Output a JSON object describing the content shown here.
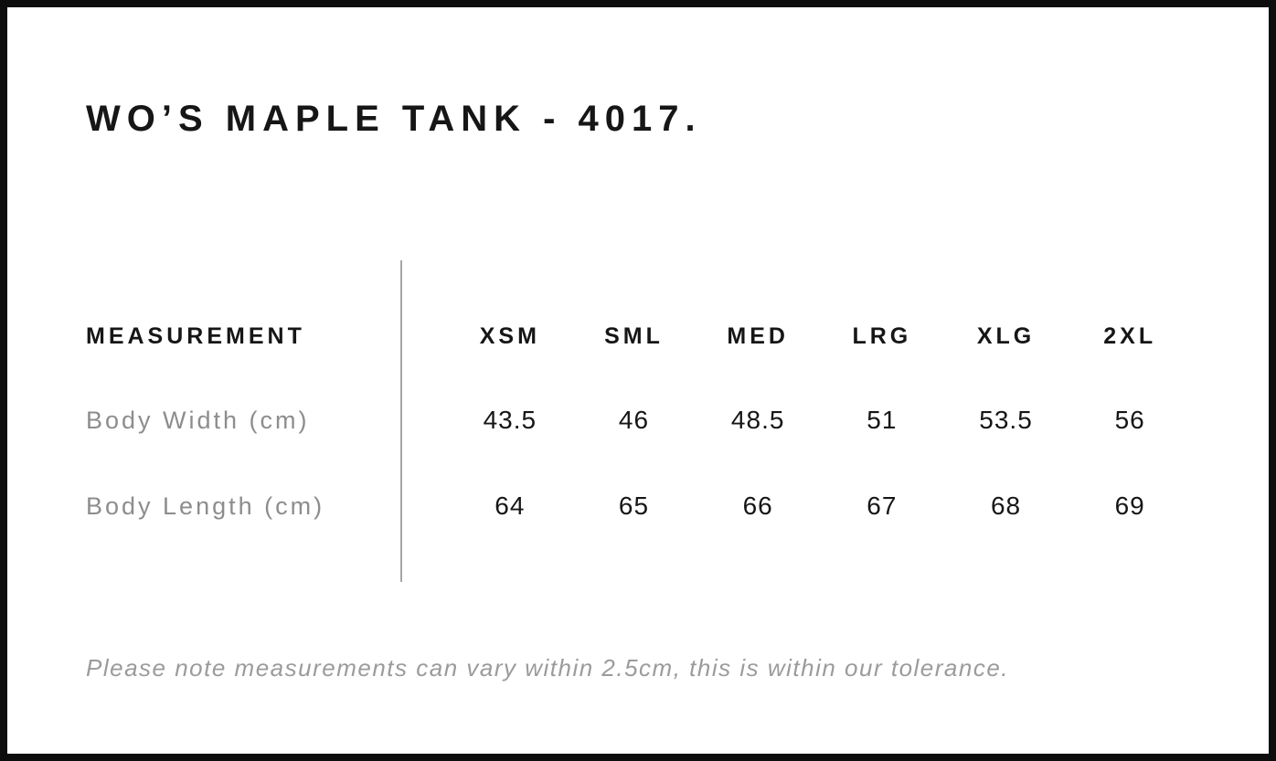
{
  "header": {
    "title": "WO’S MAPLE TANK - 4017."
  },
  "size_chart": {
    "type": "table",
    "columns": [
      "MEASUREMENT",
      "XSM",
      "SML",
      "MED",
      "LRG",
      "XLG",
      "2XL"
    ],
    "rows": [
      {
        "label": "Body Width (cm)",
        "values": [
          "43.5",
          "46",
          "48.5",
          "51",
          "53.5",
          "56"
        ]
      },
      {
        "label": "Body Length (cm)",
        "values": [
          "64",
          "65",
          "66",
          "67",
          "68",
          "69"
        ]
      }
    ]
  },
  "footer": {
    "note": "Please note measurements can vary within 2.5cm, this is within our tolerance."
  },
  "colors": {
    "text": "#161616",
    "muted": "#8d8d8d",
    "note": "#9b9b9b",
    "divider": "#a6a6a6",
    "frame": "#0d0d0d",
    "background": "#ffffff"
  }
}
